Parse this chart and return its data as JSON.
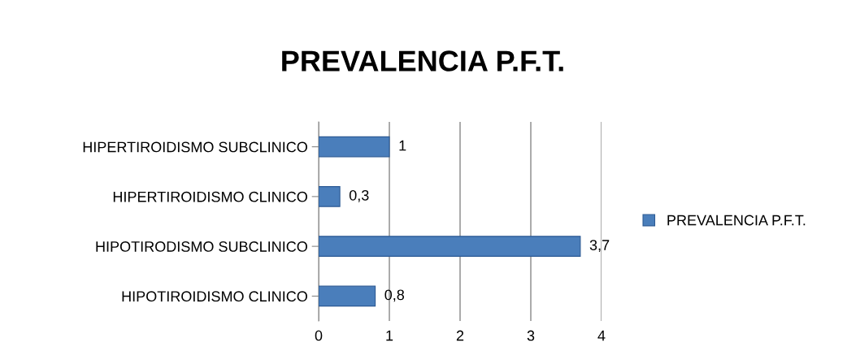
{
  "chart_data": {
    "type": "bar",
    "orientation": "horizontal",
    "title": "PREVALENCIA P.F.T.",
    "categories": [
      "HIPERTIROIDISMO SUBCLINICO",
      "HIPERTIROIDISMO CLINICO",
      "HIPOTIRODISMO SUBCLINICO",
      "HIPOTIROIDISMO CLINICO"
    ],
    "series": [
      {
        "name": "PREVALENCIA P.F.T.",
        "color": "#4a7ebb",
        "values": [
          1,
          0.3,
          3.7,
          0.8
        ],
        "value_labels": [
          "1",
          "0,3",
          "3,7",
          "0,8"
        ]
      }
    ],
    "xlim": [
      0,
      4
    ],
    "xticks": [
      0,
      1,
      2,
      3,
      4
    ],
    "grid": "x",
    "legend": "right"
  }
}
